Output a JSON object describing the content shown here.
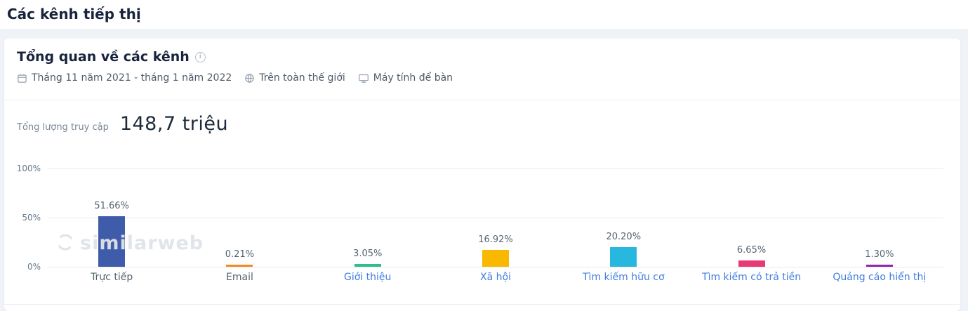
{
  "page_title": "Các kênh tiếp thị",
  "card": {
    "title": "Tổng quan về các kênh",
    "meta": {
      "date_range": "Tháng 11 năm 2021 - tháng 1 năm 2022",
      "geography": "Trên toàn thế giới",
      "device": "Máy tính để bàn"
    },
    "total_visits_label": "Tổng lượng truy cập",
    "total_visits_value": "148,7 triệu"
  },
  "watermark": "similarweb",
  "colors": {
    "link_blue": "#3f7de0",
    "title_navy": "#17243c",
    "gridline": "#e7eaef",
    "page_background": "#eff2f6"
  },
  "chart_data": {
    "type": "bar",
    "title": "",
    "xlabel": "",
    "ylabel": "",
    "ylim": [
      0,
      100
    ],
    "grid": true,
    "ytick_labels": [
      "100%",
      "50%",
      "0%"
    ],
    "ytick_values": [
      100,
      50,
      0
    ],
    "categories": [
      "Trực tiếp",
      "Email",
      "Giới thiệu",
      "Xã hội",
      "Tìm kiếm hữu cơ",
      "Tìm kiếm có trả tiền",
      "Quảng cáo hiển thị"
    ],
    "values": [
      51.66,
      0.21,
      3.05,
      16.92,
      20.2,
      6.65,
      1.3
    ],
    "value_labels": [
      "51.66%",
      "0.21%",
      "3.05%",
      "16.92%",
      "20.20%",
      "6.65%",
      "1.30%"
    ],
    "bar_colors": [
      "#3e5ca9",
      "#f28a24",
      "#2fbd90",
      "#f9b802",
      "#28b8df",
      "#e83a72",
      "#8d27ae"
    ],
    "category_is_link": [
      false,
      false,
      true,
      true,
      true,
      true,
      true
    ]
  }
}
